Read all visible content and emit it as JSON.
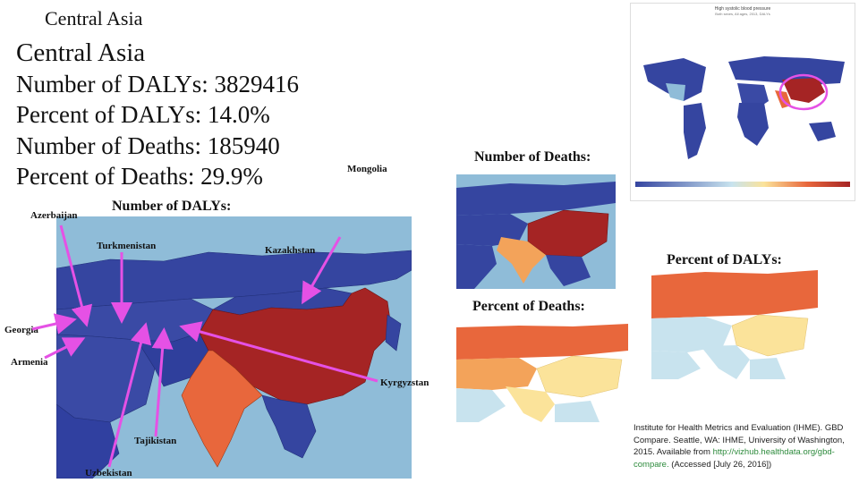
{
  "slide": {
    "small_title": "Central Asia",
    "title": "Central Asia",
    "stats": [
      "Number of DALYs: 3829416",
      "Percent of DALYs: 14.0%",
      "Number of Deaths: 185940",
      "Percent of Deaths: 29.9%"
    ]
  },
  "panels": {
    "dalys_label": "Number of DALYs:",
    "deaths_label": "Number of Deaths:",
    "pct_dalys_label": "Percent of DALYs:",
    "pct_deaths_label": "Percent of Deaths:"
  },
  "countries": {
    "azerbaijan": "Azerbaijan",
    "turkmenistan": "Turkmenistan",
    "kazakhstan": "Kazakhstan",
    "mongolia": "Mongolia",
    "georgia": "Georgia",
    "armenia": "Armenia",
    "kyrgyzstan": "Kyrgyzstan",
    "tajikistan": "Tajikistan",
    "uzbekistan": "Uzbekistan"
  },
  "world_map": {
    "title_line1": "High systolic blood pressure",
    "title_line2": "Both sexes, All ages, 2013, DALYs"
  },
  "citation": {
    "text": "Institute for Health Metrics and Evaluation (IHME). GBD Compare. Seattle, WA: IHME, University of Washington, 2015. Available from ",
    "link": "http://vizhub.healthdata.org/gbd-compare.",
    "accessed": " (Accessed [July 26, 2016])"
  },
  "colors": {
    "ocean": "#8fbcd8",
    "dark_blue": "#3545a0",
    "dark_red": "#a52424",
    "orange": "#e8673c",
    "light_orange": "#f3a35a",
    "yellow": "#fbe39a",
    "light_blue": "#c8e3ee",
    "arrow": "#e551e5"
  }
}
